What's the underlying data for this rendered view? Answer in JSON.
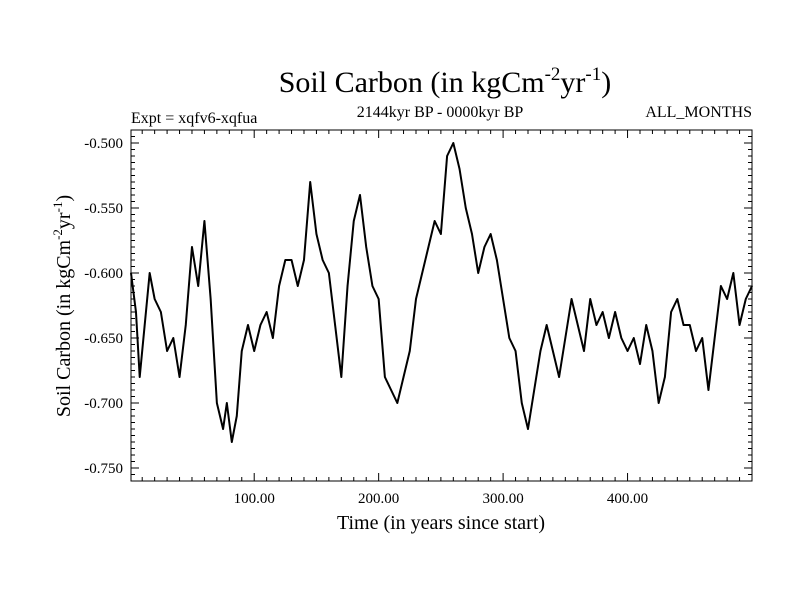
{
  "chart_data": {
    "type": "line",
    "title": {
      "main": "Soil Carbon (in kgCm",
      "sup1": "-2",
      "mid": "yr",
      "sup2": "-1",
      "end": ")"
    },
    "subtitle_left": "Expt = xqfv6-xqfua",
    "subtitle_center": "2144kyr BP - 0000kyr BP",
    "subtitle_right": "ALL_MONTHS",
    "xlabel": "Time (in years since start)",
    "ylabel": {
      "main": "Soil Carbon (in kgCm",
      "sup1": "-2",
      "mid": "yr",
      "sup2": "-1",
      "end": ")"
    },
    "xlim": [
      1,
      500
    ],
    "ylim": [
      -0.76,
      -0.49
    ],
    "xticks": [
      {
        "value": 100,
        "label": "100.00"
      },
      {
        "value": 200,
        "label": "200.00"
      },
      {
        "value": 300,
        "label": "300.00"
      },
      {
        "value": 400,
        "label": "400.00"
      }
    ],
    "yticks": [
      {
        "value": -0.5,
        "label": "-0.500"
      },
      {
        "value": -0.55,
        "label": "-0.550"
      },
      {
        "value": -0.6,
        "label": "-0.600"
      },
      {
        "value": -0.65,
        "label": "-0.650"
      },
      {
        "value": -0.7,
        "label": "-0.700"
      },
      {
        "value": -0.75,
        "label": "-0.750"
      }
    ],
    "grid": false,
    "series": [
      {
        "name": "Soil Carbon",
        "color": "#000000",
        "x": [
          1,
          5,
          8,
          12,
          16,
          20,
          25,
          30,
          35,
          40,
          45,
          50,
          55,
          60,
          65,
          70,
          75,
          78,
          82,
          86,
          90,
          95,
          100,
          105,
          110,
          115,
          120,
          125,
          130,
          135,
          140,
          145,
          150,
          155,
          160,
          165,
          170,
          175,
          180,
          185,
          190,
          195,
          200,
          205,
          210,
          215,
          220,
          225,
          230,
          235,
          240,
          245,
          250,
          255,
          260,
          265,
          270,
          275,
          280,
          285,
          290,
          295,
          300,
          305,
          310,
          315,
          320,
          325,
          330,
          335,
          340,
          345,
          350,
          355,
          360,
          365,
          370,
          375,
          380,
          385,
          390,
          395,
          400,
          405,
          410,
          415,
          420,
          425,
          430,
          435,
          440,
          445,
          450,
          455,
          460,
          465,
          470,
          475,
          480,
          485,
          490,
          495,
          500
        ],
        "values": [
          -0.6,
          -0.63,
          -0.68,
          -0.64,
          -0.6,
          -0.62,
          -0.63,
          -0.66,
          -0.65,
          -0.68,
          -0.64,
          -0.58,
          -0.61,
          -0.56,
          -0.62,
          -0.7,
          -0.72,
          -0.7,
          -0.73,
          -0.71,
          -0.66,
          -0.64,
          -0.66,
          -0.64,
          -0.63,
          -0.65,
          -0.61,
          -0.59,
          -0.59,
          -0.61,
          -0.59,
          -0.53,
          -0.57,
          -0.59,
          -0.6,
          -0.64,
          -0.68,
          -0.61,
          -0.56,
          -0.54,
          -0.58,
          -0.61,
          -0.62,
          -0.68,
          -0.69,
          -0.7,
          -0.68,
          -0.66,
          -0.62,
          -0.6,
          -0.58,
          -0.56,
          -0.57,
          -0.51,
          -0.5,
          -0.52,
          -0.55,
          -0.57,
          -0.6,
          -0.58,
          -0.57,
          -0.59,
          -0.62,
          -0.65,
          -0.66,
          -0.7,
          -0.72,
          -0.69,
          -0.66,
          -0.64,
          -0.66,
          -0.68,
          -0.65,
          -0.62,
          -0.64,
          -0.66,
          -0.62,
          -0.64,
          -0.63,
          -0.65,
          -0.63,
          -0.65,
          -0.66,
          -0.65,
          -0.67,
          -0.64,
          -0.66,
          -0.7,
          -0.68,
          -0.63,
          -0.62,
          -0.64,
          -0.64,
          -0.66,
          -0.65,
          -0.69,
          -0.65,
          -0.61,
          -0.62,
          -0.6,
          -0.64,
          -0.62,
          -0.61
        ]
      }
    ]
  }
}
